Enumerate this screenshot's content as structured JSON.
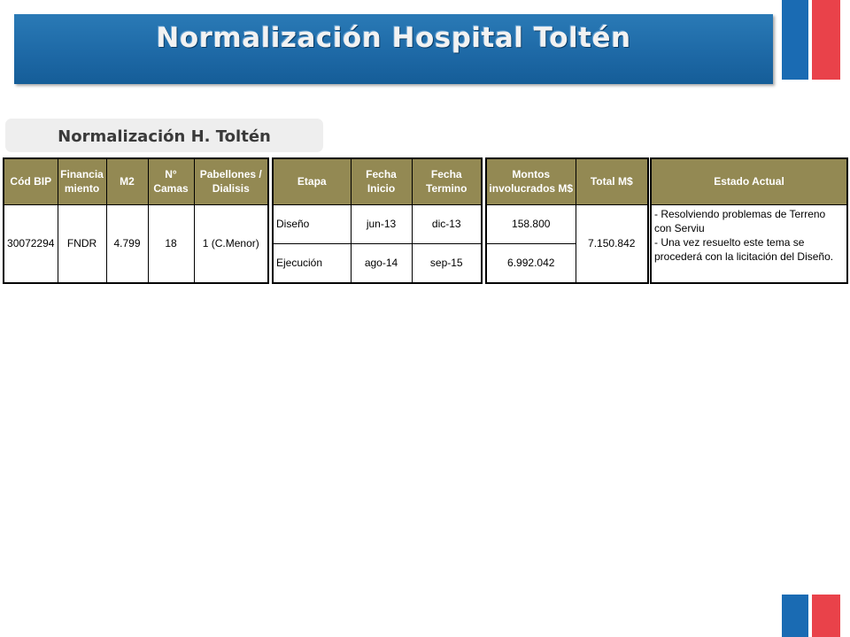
{
  "title": "Normalización Hospital Toltén",
  "subtitle": "Normalización  H. Toltén",
  "colors": {
    "banner": "#1d68a5",
    "header": "#938953",
    "flag_blue": "#1a6bb3",
    "flag_red": "#e9424a"
  },
  "table1": {
    "headers": {
      "cod_bip": "Cód BIP",
      "financiamiento": "Financia miento",
      "m2": "M2",
      "camas": "N° Camas",
      "pabellones": "Pabellones / Dialisis"
    },
    "row": {
      "cod_bip": "30072294",
      "financiamiento": "FNDR",
      "m2": "4.799",
      "camas": "18",
      "pabellones": "1 (C.Menor)"
    }
  },
  "table2": {
    "headers": {
      "etapa": "Etapa",
      "fecha_inicio": "Fecha Inicio",
      "fecha_termino": "Fecha Termino",
      "montos": "Montos involucrados M$",
      "total": "Total M$"
    },
    "rows": [
      {
        "etapa": "Diseño",
        "inicio": "jun-13",
        "termino": "dic-13",
        "monto": "158.800"
      },
      {
        "etapa": "Ejecución",
        "inicio": "ago-14",
        "termino": "sep-15",
        "monto": "6.992.042"
      }
    ],
    "total": "7.150.842"
  },
  "table3": {
    "header": "Estado Actual",
    "lines": [
      "- Resolviendo problemas de Terreno con Serviu",
      "- Una vez resuelto este tema se procederá con la licitación del Diseño."
    ]
  }
}
